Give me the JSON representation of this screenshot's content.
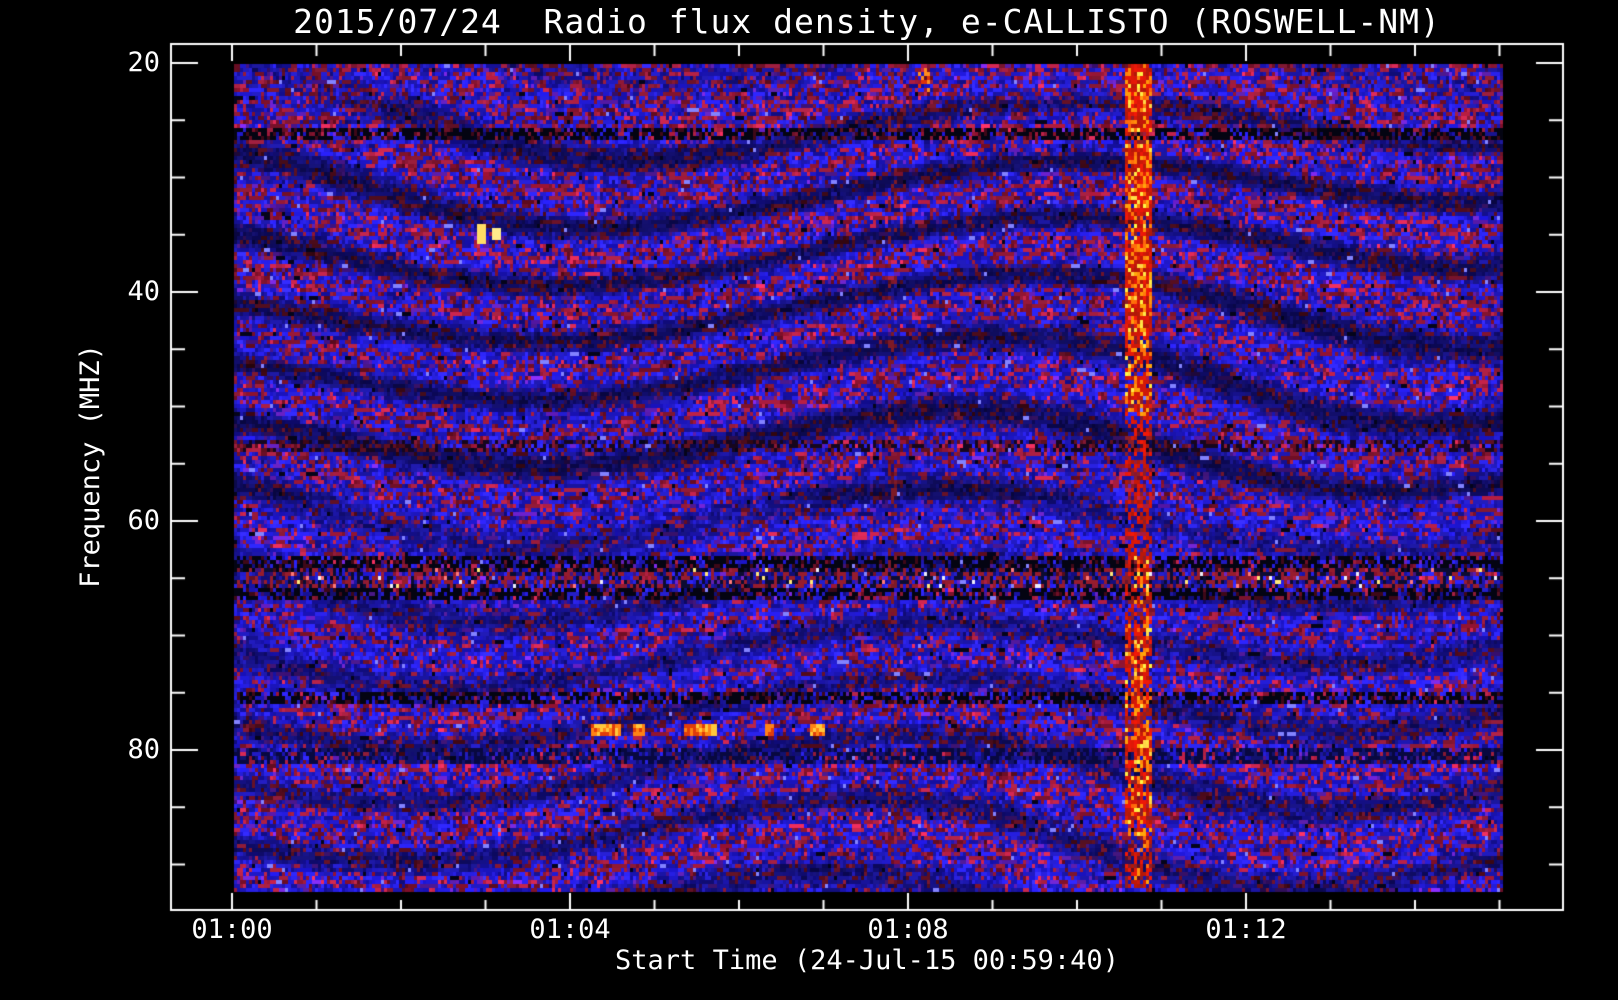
{
  "window": {
    "background": "#000000",
    "text_color": "#ffffff"
  },
  "header": {
    "title": "2015/07/24  Radio flux density, e-CALLISTO (ROSWELL-NM)"
  },
  "axes": {
    "x": {
      "title": "Start Time (24-Jul-15 00:59:40)",
      "tick_labels": [
        "01:00",
        "01:04",
        "01:08",
        "01:12"
      ],
      "minor_tick_step": "1 minute"
    },
    "y": {
      "title": "Frequency (MHZ)",
      "tick_labels": [
        "20",
        "40",
        "60",
        "80"
      ],
      "minor_tick_step": "5 MHz",
      "direction": "low frequency at top"
    }
  },
  "chart_data": {
    "type": "heatmap",
    "subtype": "solar-radio-spectrogram",
    "title": "2015/07/24  Radio flux density, e-CALLISTO (ROSWELL-NM)",
    "xlabel": "Start Time (24-Jul-15 00:59:40)",
    "ylabel": "Frequency (MHZ)",
    "x_ticks": [
      "01:00",
      "01:04",
      "01:08",
      "01:12"
    ],
    "x_range": [
      "00:59:40",
      "01:15:40"
    ],
    "y_ticks_mhz": [
      20,
      40,
      60,
      80
    ],
    "y_range_mhz": [
      20,
      94
    ],
    "grid": false,
    "legend": "none",
    "background_character": "dense blue broadband noise with dark-red mottling and slanted dark interference fringes",
    "palette": {
      "background": "#000000",
      "noise_blue": "#2a1ee0",
      "noise_blue_dark": "#0a0a6e",
      "noise_red": "#9c1c30",
      "noise_purple": "#6428b4",
      "burst_red": "#e01e05",
      "burst_orange": "#ff7a10",
      "burst_yellow": "#ffe24a",
      "speck_white": "#ececff",
      "rfi_black": "#04040f",
      "frame_and_text": "#ffffff"
    },
    "rfi_channels": [
      {
        "mhz": 26.2,
        "appearance": "dark dashed line"
      },
      {
        "mhz": 53.4,
        "appearance": "faint dark dashed line"
      },
      {
        "mhz": 63.7,
        "appearance": "dark dashed line"
      },
      {
        "mhz": 64.9,
        "appearance": "mottled band with white/yellow specks"
      },
      {
        "mhz": 66.3,
        "appearance": "dark dashed line"
      },
      {
        "mhz": 75.3,
        "appearance": "dark dashed line"
      },
      {
        "mhz": 80.2,
        "appearance": "dark band"
      }
    ],
    "events": {
      "radio_burst": {
        "time_start": "01:10:36",
        "time_end": "01:10:53",
        "freq_span_mhz": [
          20,
          92
        ],
        "description": "bright red/orange vertical burst column, most intense 20-33 MHz",
        "peak_colors": [
          "#e01e05",
          "#ff7a10",
          "#ffe24a"
        ]
      },
      "narrowband_bright_dashes": {
        "mhz": 78.2,
        "time_segments": [
          [
            "01:04:17",
            "01:04:35"
          ],
          [
            "01:04:45",
            "01:04:53"
          ],
          [
            "01:05:23",
            "01:05:44"
          ],
          [
            "01:06:20",
            "01:06:24"
          ],
          [
            "01:06:52",
            "01:07:00"
          ]
        ],
        "color": "#ff9c1e"
      },
      "short_burst": {
        "time": "01:08:10",
        "freq_span_mhz": [
          20.5,
          22.5
        ],
        "color": "#ff8c28"
      },
      "faint_red_column": {
        "time": "01:07:49",
        "freq_span_mhz": [
          20,
          92
        ]
      }
    }
  }
}
